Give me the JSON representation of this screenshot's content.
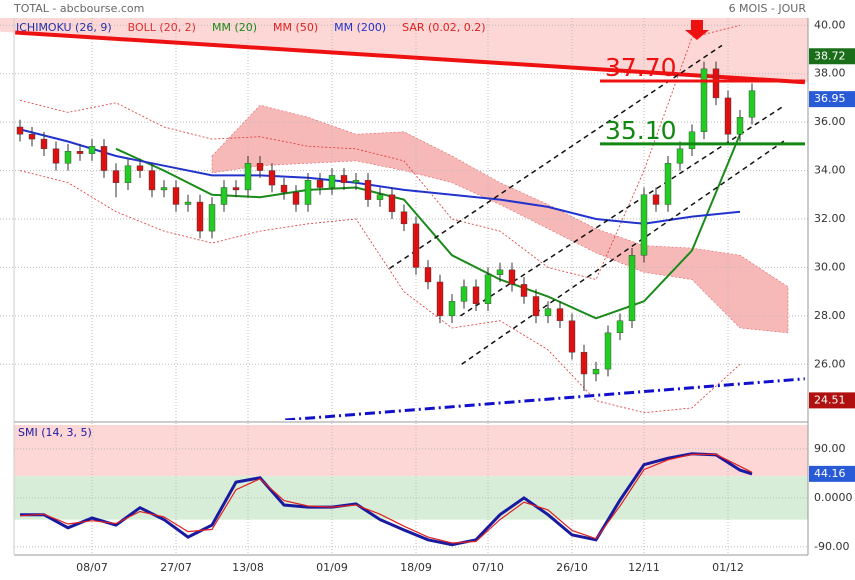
{
  "chart_data": [
    {
      "type": "candlestick",
      "title": "TOTAL - abcbourse.com",
      "subtitle": "6 MOIS - JOUR",
      "legend": [
        {
          "text": "ICHIMOKU (26, 9)",
          "color": "#2233aa"
        },
        {
          "text": "BOLL (20, 2)",
          "color": "#e03030"
        },
        {
          "text": "MM (20)",
          "color": "#1a8a1a"
        },
        {
          "text": "MM (50)",
          "color": "#e02020"
        },
        {
          "text": "MM (200)",
          "color": "#2233cc"
        },
        {
          "text": "SAR (0.02, 0.2)",
          "color": "#e02020"
        }
      ],
      "categories": [
        null,
        null,
        null,
        null,
        null,
        null,
        "08/07",
        null,
        null,
        null,
        null,
        null,
        null,
        "27/07",
        null,
        null,
        null,
        null,
        null,
        "13/08",
        null,
        null,
        null,
        null,
        null,
        null,
        "01/09",
        null,
        null,
        null,
        null,
        null,
        null,
        "18/09",
        null,
        null,
        null,
        null,
        null,
        "07/10",
        null,
        null,
        null,
        null,
        null,
        null,
        "26/10",
        null,
        null,
        null,
        null,
        null,
        "12/11",
        null,
        null,
        null,
        null,
        null,
        null,
        "01/12",
        null,
        null
      ],
      "open": [
        35.8,
        35.5,
        35.3,
        34.9,
        34.3,
        34.8,
        34.7,
        35.0,
        34.0,
        33.5,
        34.2,
        34.0,
        33.2,
        33.3,
        32.6,
        32.7,
        31.5,
        32.6,
        33.3,
        33.2,
        34.3,
        34.0,
        33.4,
        33.1,
        32.6,
        33.6,
        33.3,
        33.8,
        33.5,
        33.6,
        32.8,
        33.0,
        32.3,
        31.8,
        30.0,
        29.4,
        28.0,
        28.6,
        29.2,
        28.5,
        29.7,
        29.9,
        29.3,
        28.8,
        28.0,
        28.3,
        27.8,
        26.5,
        25.6,
        25.8,
        27.3,
        27.8,
        30.5,
        33.0,
        32.6,
        34.3,
        34.9,
        35.6,
        38.2,
        37.0,
        35.5,
        36.2
      ],
      "high": [
        36.1,
        35.8,
        35.6,
        35.2,
        35.1,
        35.1,
        35.3,
        35.3,
        34.3,
        34.5,
        34.5,
        34.3,
        33.6,
        33.6,
        33.0,
        33.0,
        32.9,
        33.6,
        33.6,
        34.6,
        34.6,
        34.3,
        33.7,
        33.4,
        33.9,
        33.9,
        34.1,
        34.1,
        33.9,
        33.9,
        33.3,
        33.3,
        32.6,
        32.1,
        30.3,
        29.7,
        28.9,
        29.5,
        29.5,
        30.0,
        30.2,
        30.2,
        29.6,
        29.1,
        28.6,
        28.6,
        28.1,
        26.8,
        26.1,
        27.6,
        28.1,
        30.8,
        33.3,
        33.3,
        34.6,
        35.2,
        35.9,
        38.5,
        38.5,
        37.3,
        36.5,
        37.6
      ],
      "low": [
        35.2,
        35.0,
        34.6,
        34.0,
        34.0,
        34.4,
        34.4,
        33.7,
        32.9,
        33.2,
        33.7,
        32.9,
        32.9,
        32.3,
        32.3,
        31.2,
        31.2,
        32.3,
        32.9,
        32.9,
        33.7,
        33.1,
        32.8,
        32.3,
        32.3,
        33.0,
        33.0,
        33.2,
        33.2,
        32.5,
        32.5,
        32.0,
        31.5,
        29.7,
        29.1,
        27.7,
        27.7,
        28.3,
        28.2,
        28.2,
        29.4,
        29.0,
        28.5,
        27.7,
        27.7,
        27.5,
        26.2,
        24.9,
        25.3,
        25.5,
        27.0,
        27.5,
        30.2,
        32.3,
        32.3,
        34.0,
        34.6,
        35.3,
        36.7,
        35.2,
        35.2,
        35.9
      ],
      "close": [
        35.5,
        35.3,
        34.9,
        34.3,
        34.8,
        34.7,
        35.0,
        34.0,
        33.5,
        34.2,
        34.0,
        33.2,
        33.3,
        32.6,
        32.7,
        31.5,
        32.6,
        33.3,
        33.2,
        34.3,
        34.0,
        33.4,
        33.1,
        32.6,
        33.6,
        33.3,
        33.8,
        33.5,
        33.6,
        32.8,
        33.0,
        32.3,
        31.8,
        30.0,
        29.4,
        28.0,
        28.6,
        29.2,
        28.5,
        29.7,
        29.9,
        29.3,
        28.8,
        28.0,
        28.3,
        27.8,
        26.5,
        25.6,
        25.8,
        27.3,
        27.8,
        30.5,
        33.0,
        32.6,
        34.3,
        34.9,
        35.6,
        38.2,
        37.0,
        35.5,
        36.2,
        37.3
      ],
      "up_color": "#22cc22",
      "down_color": "#dd1111",
      "ylim": [
        23.7,
        40.3
      ],
      "yticks": [
        {
          "value": 26,
          "label": "26.00"
        },
        {
          "value": 28,
          "label": "28.00"
        },
        {
          "value": 30,
          "label": "30.00"
        },
        {
          "value": 32,
          "label": "32.00"
        },
        {
          "value": 34,
          "label": "34.00"
        },
        {
          "value": 36,
          "label": "36.00"
        },
        {
          "value": 38,
          "label": "38.00"
        },
        {
          "value": 40,
          "label": "40.00"
        }
      ],
      "grid": true,
      "cloud": {
        "color": "#f4a0a0",
        "x": [
          16,
          20,
          24,
          28,
          32,
          36,
          40,
          44,
          48,
          52,
          56,
          60,
          64
        ],
        "upper": [
          34.6,
          36.7,
          36.2,
          35.5,
          35.6,
          34.6,
          33.5,
          32.6,
          31.6,
          30.9,
          30.8,
          30.5,
          29.2
        ],
        "lower": [
          33.9,
          34.2,
          34.3,
          34.4,
          34.0,
          33.5,
          32.6,
          31.6,
          30.6,
          29.8,
          29.5,
          27.5,
          27.3
        ]
      },
      "bollinger": {
        "color": "#e03030",
        "x": [
          0,
          4,
          8,
          12,
          16,
          20,
          24,
          28,
          32,
          36,
          40,
          44,
          48,
          52,
          56,
          60
        ],
        "upper": [
          36.9,
          36.4,
          36.8,
          35.8,
          35.3,
          35.4,
          35.0,
          34.9,
          34.4,
          32.0,
          31.5,
          30.0,
          29.5,
          34.0,
          39.5,
          40.0
        ],
        "lower": [
          34.0,
          33.5,
          32.3,
          31.5,
          31.0,
          31.5,
          31.8,
          32.0,
          29.0,
          27.5,
          27.8,
          26.6,
          24.5,
          24.0,
          24.2,
          26.0
        ]
      },
      "lines": [
        {
          "color": "#1a8a1a",
          "width": 2,
          "x": [
            0,
            4,
            8,
            12,
            16,
            20,
            24,
            28,
            32,
            36,
            40,
            44,
            48,
            52,
            56,
            60
          ],
          "values": [
            null,
            null,
            34.9,
            34.0,
            33.0,
            32.9,
            33.2,
            33.3,
            32.8,
            30.5,
            29.5,
            28.8,
            27.9,
            28.6,
            30.7,
            35.5
          ]
        },
        {
          "color": "#2233cc",
          "width": 2,
          "x": [
            0,
            4,
            8,
            12,
            16,
            20,
            24,
            28,
            32,
            36,
            40,
            44,
            48,
            52,
            56,
            60
          ],
          "values": [
            35.7,
            35.2,
            34.6,
            34.2,
            33.8,
            33.8,
            33.7,
            33.5,
            33.2,
            33.0,
            32.8,
            32.5,
            32.0,
            31.8,
            32.1,
            32.3
          ]
        }
      ],
      "trendlines": [
        {
          "color": "#ee1111",
          "width": 4,
          "dash": "",
          "x": [
            -0.4,
            65.4
          ],
          "values": [
            39.7,
            37.65
          ]
        },
        {
          "color": "#1111cc",
          "width": 3,
          "dash": "10 4 2 4",
          "x": [
            22.1,
            65.4
          ],
          "values": [
            23.7,
            25.4
          ]
        },
        {
          "color": "#111111",
          "width": 1.5,
          "dash": "5 4",
          "x": [
            30.8,
            58.5
          ],
          "values": [
            29.96,
            39.17
          ]
        },
        {
          "color": "#111111",
          "width": 1.5,
          "dash": "5 4",
          "x": [
            36.7,
            63.75
          ],
          "values": [
            28.0,
            36.7
          ]
        },
        {
          "color": "#111111",
          "width": 1.5,
          "dash": "5 4",
          "x": [
            36.8,
            63.75
          ],
          "values": [
            26.0,
            35.25
          ]
        }
      ],
      "levels": [
        {
          "value": 37.7,
          "label": "37.70",
          "color": "#ee1111"
        },
        {
          "value": 35.1,
          "label": "35.10",
          "color": "#118811"
        }
      ],
      "price_tags": [
        {
          "value": 38.72,
          "color": "#1a6e1a"
        },
        {
          "value": 36.95,
          "color": "#2a5bd7"
        },
        {
          "value": 24.51,
          "color": "#b01010"
        }
      ]
    },
    {
      "type": "oscillator",
      "title": "SMI (14, 3, 5)",
      "ylim": [
        -105,
        134
      ],
      "yticks": [
        {
          "value": 90,
          "label": "90.00"
        },
        {
          "value": 0,
          "label": "0.0000"
        },
        {
          "value": -90,
          "label": "-90.00"
        }
      ],
      "zones": [
        {
          "from": 40,
          "to": 134,
          "color": "#fdd6d6"
        },
        {
          "from": -40,
          "to": 40,
          "color": "#d8edd8"
        }
      ],
      "x": [
        0,
        2,
        4,
        6,
        8,
        10,
        12,
        14,
        16,
        18,
        20,
        22,
        24,
        26,
        28,
        30,
        32,
        34,
        36,
        38,
        40,
        42,
        44,
        46,
        48,
        50,
        52,
        54,
        56,
        58,
        60,
        61
      ],
      "series": [
        {
          "color": "#1a1aa0",
          "width": 3,
          "values": [
            -31,
            -31,
            -55,
            -37,
            -50,
            -18,
            -40,
            -72,
            -50,
            29,
            37,
            -13,
            -17,
            -17,
            -11,
            -40,
            -59,
            -77,
            -86,
            -77,
            -31,
            0,
            -31,
            -68,
            -77,
            -4,
            61,
            73,
            81,
            79,
            51,
            44.16
          ]
        },
        {
          "color": "#e02020",
          "width": 1.2,
          "values": [
            -33,
            -30,
            -48,
            -42,
            -47,
            -25,
            -35,
            -62,
            -58,
            15,
            35,
            -5,
            -15,
            -17,
            -13,
            -30,
            -52,
            -72,
            -83,
            -80,
            -40,
            -8,
            -22,
            -60,
            -75,
            -15,
            52,
            70,
            80,
            80,
            58,
            47
          ]
        }
      ],
      "price_tag": {
        "value": 44.16,
        "color": "#2a5bd7"
      }
    }
  ]
}
